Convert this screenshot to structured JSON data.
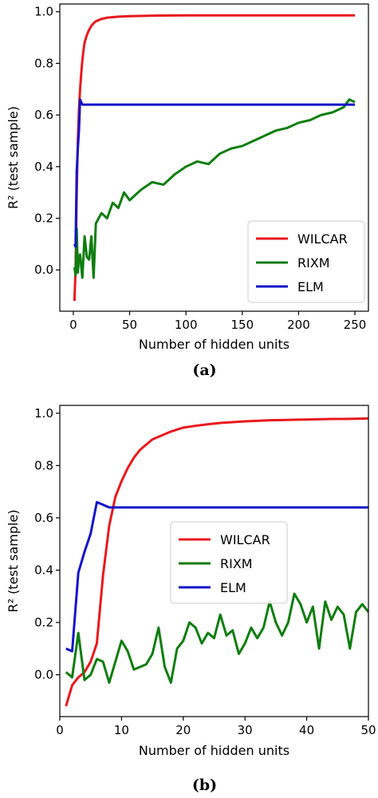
{
  "colors": {
    "WILCAR": "#e8191e",
    "RIXM": "#0f7d0f",
    "ELM": "#1414c8"
  },
  "chart_data": [
    {
      "type": "line",
      "panel_label": "(a)",
      "xlabel": "Number of hidden units",
      "ylabel": "R² (test sample)",
      "xlim": [
        -12,
        262
      ],
      "ylim": [
        -0.16,
        1.03
      ],
      "xticks": [
        0,
        50,
        100,
        150,
        200,
        250
      ],
      "xtick_labels": [
        "0",
        "50",
        "100",
        "150",
        "200",
        "250"
      ],
      "yticks": [
        0.0,
        0.2,
        0.4,
        0.6,
        0.8,
        1.0
      ],
      "ytick_labels": [
        "0.0",
        "0.2",
        "0.4",
        "0.6",
        "0.8",
        "1.0"
      ],
      "grid": false,
      "legend": {
        "position": "lower-right",
        "entries": [
          "WILCAR",
          "RIXM",
          "ELM"
        ]
      },
      "series": [
        {
          "name": "WILCAR",
          "x": [
            1,
            2,
            3,
            4,
            5,
            6,
            7,
            8,
            9,
            10,
            12,
            14,
            16,
            18,
            20,
            25,
            30,
            40,
            50,
            75,
            100,
            150,
            200,
            250
          ],
          "y": [
            -0.12,
            0.0,
            0.3,
            0.5,
            0.62,
            0.7,
            0.76,
            0.81,
            0.85,
            0.88,
            0.91,
            0.93,
            0.945,
            0.955,
            0.963,
            0.972,
            0.977,
            0.981,
            0.983,
            0.985,
            0.986,
            0.986,
            0.986,
            0.986
          ]
        },
        {
          "name": "RIXM",
          "x": [
            1,
            2,
            3,
            4,
            5,
            6,
            8,
            10,
            12,
            14,
            16,
            18,
            20,
            25,
            30,
            35,
            40,
            45,
            50,
            60,
            70,
            80,
            90,
            100,
            110,
            120,
            130,
            140,
            150,
            160,
            170,
            180,
            190,
            200,
            210,
            220,
            230,
            240,
            245,
            250
          ],
          "y": [
            0.01,
            -0.02,
            0.16,
            -0.01,
            0.05,
            0.06,
            -0.03,
            0.13,
            0.05,
            0.04,
            0.13,
            -0.03,
            0.18,
            0.22,
            0.2,
            0.26,
            0.24,
            0.3,
            0.27,
            0.31,
            0.34,
            0.33,
            0.37,
            0.4,
            0.42,
            0.41,
            0.45,
            0.47,
            0.48,
            0.5,
            0.52,
            0.54,
            0.55,
            0.57,
            0.58,
            0.6,
            0.61,
            0.63,
            0.66,
            0.65
          ]
        },
        {
          "name": "ELM",
          "x": [
            1,
            2,
            3,
            4,
            5,
            6,
            7,
            8,
            10,
            50,
            100,
            150,
            200,
            250
          ],
          "y": [
            0.1,
            0.09,
            0.38,
            0.47,
            0.54,
            0.66,
            0.65,
            0.64,
            0.64,
            0.64,
            0.64,
            0.64,
            0.64,
            0.64
          ]
        }
      ]
    },
    {
      "type": "line",
      "panel_label": "(b)",
      "xlabel": "Number of hidden units",
      "ylabel": "R² (test sample)",
      "xlim": [
        0,
        50
      ],
      "ylim": [
        -0.16,
        1.03
      ],
      "xticks": [
        0,
        10,
        20,
        30,
        40,
        50
      ],
      "xtick_labels": [
        "0",
        "10",
        "20",
        "30",
        "40",
        "50"
      ],
      "yticks": [
        0.0,
        0.2,
        0.4,
        0.6,
        0.8,
        1.0
      ],
      "ytick_labels": [
        "0.0",
        "0.2",
        "0.4",
        "0.6",
        "0.8",
        "1.0"
      ],
      "grid": false,
      "legend": {
        "position": "center",
        "entries": [
          "WILCAR",
          "RIXM",
          "ELM"
        ]
      },
      "series": [
        {
          "name": "WILCAR",
          "x": [
            1,
            2,
            3,
            4,
            5,
            6,
            7,
            8,
            9,
            10,
            11,
            12,
            13,
            14,
            15,
            16,
            18,
            20,
            22,
            24,
            26,
            28,
            30,
            32,
            34,
            36,
            38,
            40,
            42,
            44,
            46,
            48,
            50
          ],
          "y": [
            -0.12,
            -0.04,
            -0.01,
            0.01,
            0.05,
            0.12,
            0.38,
            0.57,
            0.68,
            0.74,
            0.79,
            0.83,
            0.86,
            0.88,
            0.9,
            0.91,
            0.93,
            0.945,
            0.952,
            0.958,
            0.963,
            0.966,
            0.969,
            0.971,
            0.973,
            0.974,
            0.975,
            0.976,
            0.977,
            0.978,
            0.978,
            0.979,
            0.98
          ]
        },
        {
          "name": "RIXM",
          "x": [
            1,
            2,
            3,
            4,
            5,
            6,
            7,
            8,
            9,
            10,
            11,
            12,
            13,
            14,
            15,
            16,
            17,
            18,
            19,
            20,
            21,
            22,
            23,
            24,
            25,
            26,
            27,
            28,
            29,
            30,
            31,
            32,
            33,
            34,
            35,
            36,
            37,
            38,
            39,
            40,
            41,
            42,
            43,
            44,
            45,
            46,
            47,
            48,
            49,
            50
          ],
          "y": [
            0.01,
            -0.01,
            0.16,
            -0.02,
            0.0,
            0.06,
            0.05,
            -0.03,
            0.05,
            0.13,
            0.09,
            0.02,
            0.03,
            0.04,
            0.08,
            0.18,
            0.03,
            -0.03,
            0.1,
            0.13,
            0.2,
            0.18,
            0.12,
            0.16,
            0.14,
            0.23,
            0.15,
            0.17,
            0.08,
            0.12,
            0.18,
            0.14,
            0.18,
            0.28,
            0.2,
            0.15,
            0.2,
            0.31,
            0.27,
            0.2,
            0.26,
            0.1,
            0.28,
            0.21,
            0.26,
            0.23,
            0.1,
            0.24,
            0.27,
            0.24
          ]
        },
        {
          "name": "ELM",
          "x": [
            1,
            2,
            3,
            4,
            5,
            6,
            7,
            8,
            10,
            20,
            30,
            40,
            50
          ],
          "y": [
            0.1,
            0.09,
            0.39,
            0.47,
            0.54,
            0.66,
            0.65,
            0.64,
            0.64,
            0.64,
            0.64,
            0.64,
            0.64
          ]
        }
      ]
    }
  ]
}
